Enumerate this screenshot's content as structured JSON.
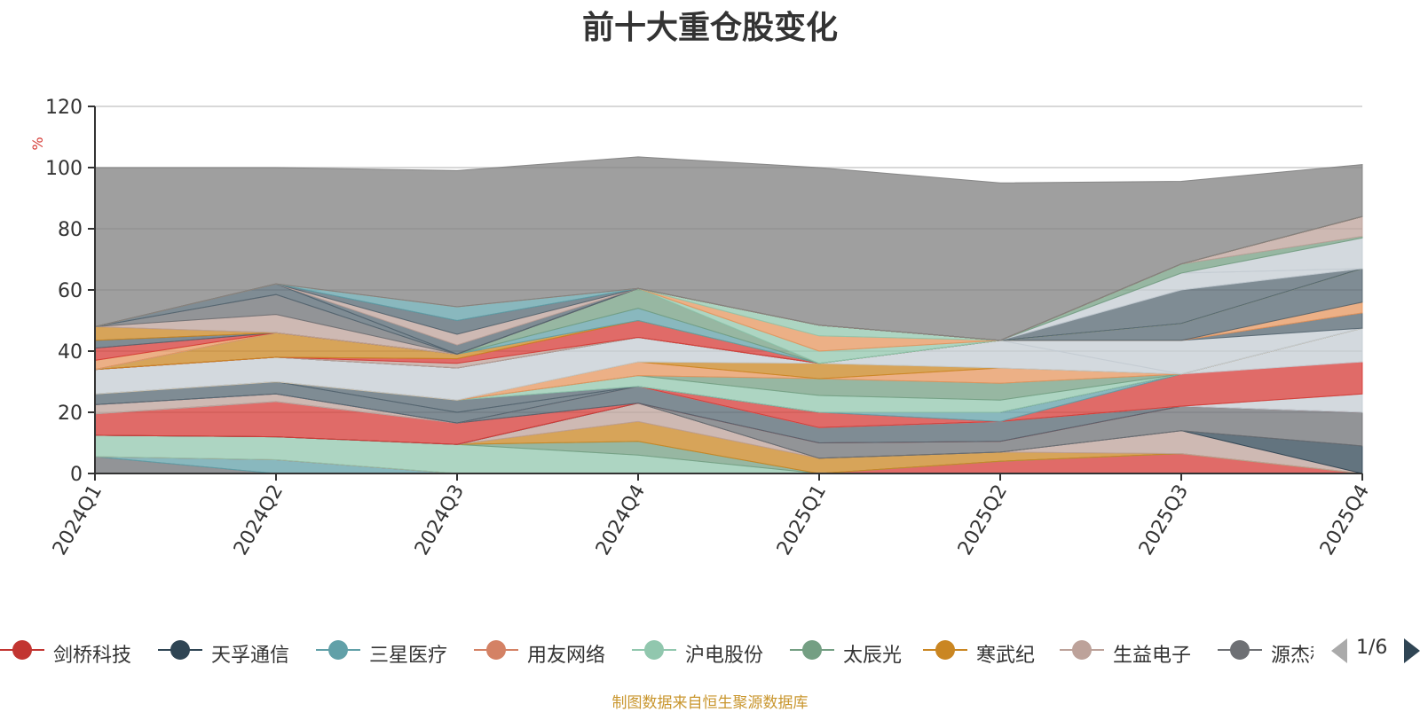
{
  "title": "前十大重仓股变化",
  "source_note": "制图数据来自恒生聚源数据库",
  "legend_page": "1/6",
  "chart_data": {
    "type": "area",
    "stacked": true,
    "title": "前十大重仓股变化",
    "ylabel": "%",
    "ylim": [
      0,
      120
    ],
    "yticks": [
      0,
      20,
      40,
      60,
      80,
      100,
      120
    ],
    "grid": true,
    "legend_position": "bottom",
    "categories": [
      "2024Q1",
      "2024Q2",
      "2024Q3",
      "2024Q4",
      "2025Q1",
      "2025Q2",
      "2025Q3",
      "2025Q4"
    ],
    "series": [
      {
        "name": "",
        "color": "#6e7074",
        "values": [
          5.5,
          0,
          0,
          0,
          0,
          0,
          0,
          0
        ]
      },
      {
        "name": "",
        "color": "#61a0a8",
        "values": [
          0,
          4.5,
          0,
          0,
          0,
          0,
          0,
          0
        ]
      },
      {
        "name": "",
        "color": "#d53a35",
        "values": [
          0,
          0,
          0,
          0,
          0,
          4,
          6.5,
          0
        ]
      },
      {
        "name": "",
        "color": "#91c7ae",
        "values": [
          7,
          7.5,
          9.5,
          6,
          0,
          0,
          0,
          0
        ]
      },
      {
        "name": "",
        "color": "#749f83",
        "values": [
          0,
          0,
          0,
          4.5,
          0,
          0,
          0,
          0
        ]
      },
      {
        "name": "",
        "color": "#ca8622",
        "values": [
          0,
          0,
          0,
          6.5,
          5,
          3,
          0,
          0
        ]
      },
      {
        "name": "",
        "color": "#bda29a",
        "values": [
          0,
          0,
          0,
          6,
          0,
          0,
          7.5,
          0
        ]
      },
      {
        "name": "",
        "color": "#2f4554",
        "values": [
          0,
          0,
          0,
          0,
          0,
          0,
          0,
          9
        ]
      },
      {
        "name": "",
        "color": "#6e7074",
        "values": [
          0,
          0,
          0,
          0,
          5,
          3.5,
          8,
          11
        ]
      },
      {
        "name": "",
        "color": "#d53a35",
        "values": [
          7,
          11.5,
          7,
          0,
          0,
          0,
          0,
          0
        ]
      },
      {
        "name": "",
        "color": "#546570",
        "values": [
          0,
          0,
          0,
          5.5,
          5,
          6.5,
          0,
          0
        ]
      },
      {
        "name": "",
        "color": "#c4ccd3",
        "values": [
          0,
          0,
          0,
          0,
          0,
          0,
          0,
          6
        ]
      },
      {
        "name": "",
        "color": "#bda29a",
        "values": [
          3,
          2.5,
          0,
          0,
          0,
          0,
          0,
          0
        ]
      },
      {
        "name": "",
        "color": "#d53a35",
        "values": [
          0,
          0,
          0,
          0,
          0,
          0,
          10.5,
          10.5
        ]
      },
      {
        "name": "",
        "color": "#c4ccd3",
        "values": [
          0,
          0,
          0,
          0,
          0,
          0,
          0,
          11
        ]
      },
      {
        "name": "",
        "color": "#d53a35",
        "values": [
          0,
          0,
          0,
          0,
          5,
          0,
          0,
          0
        ]
      },
      {
        "name": "",
        "color": "#61a0a8",
        "values": [
          0,
          0,
          0,
          0,
          0,
          3,
          0,
          0
        ]
      },
      {
        "name": "",
        "color": "#546570",
        "values": [
          3.5,
          4,
          3.5,
          0,
          0,
          0,
          0,
          0
        ]
      },
      {
        "name": "",
        "color": "#546570",
        "values": [
          0,
          0,
          4,
          0,
          0,
          0,
          0,
          0
        ]
      },
      {
        "name": "",
        "color": "#91c7ae",
        "values": [
          0,
          0,
          0,
          3.5,
          5.5,
          4,
          0,
          0
        ]
      },
      {
        "name": "",
        "color": "#749f83",
        "values": [
          0,
          0,
          0,
          0,
          5.5,
          5.5,
          0,
          0
        ]
      },
      {
        "name": "",
        "color": "#e6955d",
        "values": [
          0,
          0,
          0,
          4.5,
          0,
          5,
          0,
          0
        ]
      },
      {
        "name": "",
        "color": "#ca8622",
        "values": [
          0,
          0,
          0,
          0,
          5,
          0,
          0,
          0
        ]
      },
      {
        "name": "",
        "color": "#c4ccd3",
        "values": [
          8,
          8,
          10.5,
          8,
          0,
          9,
          0,
          0
        ]
      },
      {
        "name": "",
        "color": "#c4ccd3",
        "values": [
          0,
          0,
          0,
          0,
          0,
          0,
          11,
          0
        ]
      },
      {
        "name": "",
        "color": "#546570",
        "values": [
          0,
          0,
          0,
          0,
          0,
          0,
          0,
          5
        ]
      },
      {
        "name": "",
        "color": "#e6955d",
        "values": [
          0,
          0,
          0,
          0,
          0,
          0,
          0,
          3.5
        ]
      },
      {
        "name": "",
        "color": "#546570",
        "values": [
          0,
          0,
          0,
          0,
          0,
          0,
          5.5,
          11
        ]
      },
      {
        "name": "",
        "color": "#bda29a",
        "values": [
          0,
          0,
          1.5,
          0,
          0,
          0,
          0,
          0
        ]
      },
      {
        "name": "",
        "color": "#d53a35",
        "values": [
          0,
          0,
          1.5,
          5.5,
          0,
          0,
          0,
          0
        ]
      },
      {
        "name": "",
        "color": "#ca8622",
        "values": [
          0,
          8,
          1.5,
          0,
          0,
          0,
          0,
          0
        ]
      },
      {
        "name": "",
        "color": "#61a0a8",
        "values": [
          0,
          0,
          0,
          4,
          0,
          0,
          0,
          0
        ]
      },
      {
        "name": "",
        "color": "#749f83",
        "values": [
          0,
          0,
          0,
          6.5,
          0,
          0,
          0,
          0
        ]
      },
      {
        "name": "",
        "color": "#91c7ae",
        "values": [
          0,
          0,
          0,
          0,
          4,
          0,
          0,
          0
        ]
      },
      {
        "name": "",
        "color": "#e6955d",
        "values": [
          0,
          0,
          0,
          0,
          5,
          0,
          0,
          0
        ]
      },
      {
        "name": "",
        "color": "#91c7ae",
        "values": [
          0,
          0,
          0,
          0,
          3.5,
          0,
          0,
          0
        ]
      },
      {
        "name": "",
        "color": "#546570",
        "values": [
          0,
          0,
          0,
          0,
          0,
          0,
          11,
          0
        ]
      },
      {
        "name": "",
        "color": "#c4ccd3",
        "values": [
          0,
          0,
          0,
          0,
          0,
          0,
          5.5,
          0
        ]
      },
      {
        "name": "",
        "color": "#c4ccd3",
        "values": [
          0,
          0,
          0,
          0,
          0,
          0,
          0,
          10
        ]
      },
      {
        "name": "",
        "color": "#749f83",
        "values": [
          0,
          0,
          0,
          0,
          0,
          0,
          3,
          0.5
        ]
      },
      {
        "name": "",
        "color": "#bda29a",
        "values": [
          0,
          0,
          0,
          0,
          0,
          0,
          0,
          6.5
        ]
      },
      {
        "name": "",
        "color": "#e6955d",
        "values": [
          3,
          0,
          0,
          0,
          0,
          0,
          0,
          0
        ]
      },
      {
        "name": "",
        "color": "#d53a35",
        "values": [
          4,
          0,
          0,
          0,
          0,
          0,
          0,
          0
        ]
      },
      {
        "name": "",
        "color": "#546570",
        "values": [
          2.5,
          0,
          0,
          0,
          0,
          0,
          0,
          0
        ]
      },
      {
        "name": "",
        "color": "#ca8622",
        "values": [
          4.5,
          0,
          0,
          0,
          0,
          0,
          0,
          0
        ]
      },
      {
        "name": "",
        "color": "#bda29a",
        "values": [
          0,
          6,
          0,
          0,
          0,
          0,
          0,
          0
        ]
      },
      {
        "name": "",
        "color": "#6e7074",
        "values": [
          0,
          6.5,
          0,
          0,
          0,
          0,
          0,
          0
        ]
      },
      {
        "name": "",
        "color": "#546570",
        "values": [
          0,
          3.5,
          0,
          0,
          0,
          0,
          0,
          0
        ]
      },
      {
        "name": "",
        "color": "#546570",
        "values": [
          0,
          0,
          3,
          0,
          0,
          0,
          0,
          0
        ]
      },
      {
        "name": "",
        "color": "#bda29a",
        "values": [
          0,
          0,
          3.5,
          0,
          0,
          0,
          0,
          0
        ]
      },
      {
        "name": "",
        "color": "#546570",
        "values": [
          0,
          0,
          4.5,
          0,
          0,
          0,
          0,
          0
        ]
      },
      {
        "name": "",
        "color": "#61a0a8",
        "values": [
          0,
          0,
          4.5,
          0,
          0,
          0,
          0,
          0
        ]
      },
      {
        "name": "",
        "color": "#e6955d",
        "values": [
          0,
          0,
          0,
          0,
          0,
          0,
          0,
          0
        ]
      },
      {
        "name": "",
        "color": "#7f7f7f",
        "values": [
          52,
          38,
          44.5,
          43,
          51.5,
          51.5,
          27,
          17
        ]
      }
    ],
    "legend": [
      {
        "name": "剑桥科技",
        "color": "#c23531"
      },
      {
        "name": "天孚通信",
        "color": "#2f4554"
      },
      {
        "name": "三星医疗",
        "color": "#61a0a8"
      },
      {
        "name": "用友网络",
        "color": "#d48265"
      },
      {
        "name": "沪电股份",
        "color": "#91c7ae"
      },
      {
        "name": "太辰光",
        "color": "#749f83"
      },
      {
        "name": "寒武纪",
        "color": "#ca8622"
      },
      {
        "name": "生益电子",
        "color": "#bda29a"
      },
      {
        "name": "源杰科技",
        "color": "#6e7074"
      }
    ]
  }
}
